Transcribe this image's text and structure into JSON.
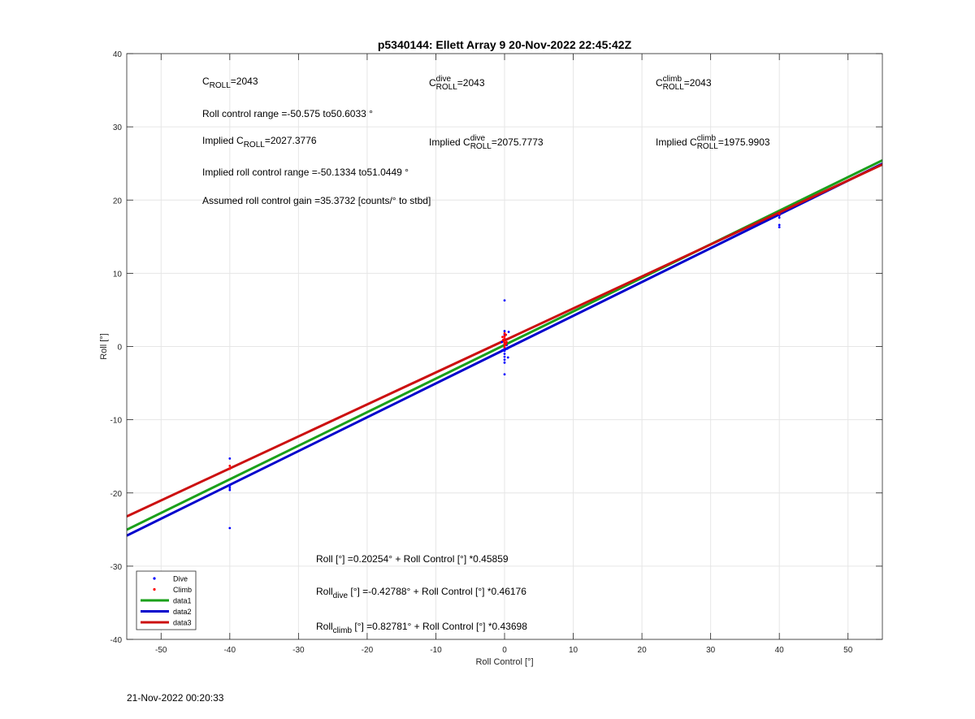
{
  "chart_data": {
    "type": "scatter",
    "title": "p5340144: Ellett Array 9 20-Nov-2022 22:45:42Z",
    "xlabel": "Roll Control [°]",
    "ylabel": "Roll [°]",
    "xlim": [
      -55,
      55
    ],
    "ylim": [
      -40,
      40
    ],
    "xticks": [
      -50,
      -40,
      -30,
      -20,
      -10,
      0,
      10,
      20,
      30,
      40,
      50
    ],
    "yticks": [
      -40,
      -30,
      -20,
      -10,
      0,
      10,
      20,
      30,
      40
    ],
    "grid": true,
    "legend_position": "bottom-left",
    "series": [
      {
        "name": "Dive",
        "kind": "points",
        "color": "#0000ff",
        "points": [
          [
            -40,
            -15.3
          ],
          [
            -40,
            -19.0
          ],
          [
            -40,
            -19.3
          ],
          [
            -40,
            -19.6
          ],
          [
            -40,
            -24.8
          ],
          [
            0,
            6.3
          ],
          [
            0,
            2.1
          ],
          [
            0,
            1.6
          ],
          [
            0,
            1.0
          ],
          [
            0,
            0.4
          ],
          [
            0,
            -0.2
          ],
          [
            0,
            -0.6
          ],
          [
            0,
            -1.0
          ],
          [
            0,
            -1.4
          ],
          [
            0,
            -1.8
          ],
          [
            0,
            -2.2
          ],
          [
            0,
            -3.8
          ],
          [
            0.3,
            0.2
          ],
          [
            0.4,
            -0.3
          ],
          [
            -0.3,
            -0.5
          ],
          [
            0.5,
            -1.5
          ],
          [
            -0.4,
            0.6
          ],
          [
            0.6,
            2.0
          ],
          [
            40,
            17.6
          ],
          [
            40,
            17.9
          ],
          [
            40,
            16.6
          ],
          [
            40,
            16.3
          ]
        ]
      },
      {
        "name": "Climb",
        "kind": "points",
        "color": "#ff0000",
        "points": [
          [
            -40,
            -16.3
          ],
          [
            -40,
            -16.7
          ],
          [
            0,
            1.8
          ],
          [
            0,
            1.4
          ],
          [
            0,
            1.1
          ],
          [
            0,
            0.8
          ],
          [
            0,
            0.5
          ],
          [
            0,
            0.2
          ],
          [
            0,
            -0.1
          ],
          [
            0.2,
            1.6
          ],
          [
            -0.2,
            0.9
          ],
          [
            0.3,
            0.6
          ],
          [
            -0.3,
            1.3
          ],
          [
            0.2,
            0.3
          ],
          [
            40,
            18.1
          ]
        ]
      },
      {
        "name": "data1",
        "kind": "line",
        "color": "#1aa01a",
        "intercept": 0.20254,
        "slope": 0.45859
      },
      {
        "name": "data2",
        "kind": "line",
        "color": "#0000cc",
        "intercept": -0.42788,
        "slope": 0.46176
      },
      {
        "name": "data3",
        "kind": "line",
        "color": "#cc1010",
        "intercept": 0.82781,
        "slope": 0.43698
      }
    ],
    "annotations": {
      "c_roll": {
        "base": "C",
        "sub": "ROLL",
        "sup": "",
        "value": "=2043"
      },
      "c_roll_dive": {
        "base": "C",
        "sub": "ROLL",
        "sup": "dive",
        "value": "=2043"
      },
      "c_roll_climb": {
        "base": "C",
        "sub": "ROLL",
        "sup": "climb",
        "value": "=2043"
      },
      "roll_control_range": "Roll control range =-50.575 to50.6033 °",
      "implied_c_roll": {
        "prefix": "Implied ",
        "base": "C",
        "sub": "ROLL",
        "sup": "",
        "value": "=2027.3776"
      },
      "implied_c_roll_dive": {
        "prefix": "Implied ",
        "base": "C",
        "sub": "ROLL",
        "sup": "dive",
        "value": "=2075.7773"
      },
      "implied_c_roll_climb": {
        "prefix": "Implied ",
        "base": "C",
        "sub": "ROLL",
        "sup": "climb",
        "value": "=1975.9903"
      },
      "implied_roll_control_range": "Implied roll control range =-50.1334 to51.0449 °",
      "assumed_gain": "Assumed roll control gain =35.3732 [counts/° to stbd]",
      "fit_all": {
        "base": "Roll",
        "sub": "",
        "rest": " [°] =0.20254° + Roll Control [°] *0.45859"
      },
      "fit_dive": {
        "base": "Roll",
        "sub": "dive",
        "rest": " [°] =-0.42788° + Roll Control [°] *0.46176"
      },
      "fit_climb": {
        "base": "Roll",
        "sub": "climb",
        "rest": " [°] =0.82781° + Roll Control [°] *0.43698"
      }
    }
  },
  "footer": {
    "timestamp": "21-Nov-2022 00:20:33"
  }
}
